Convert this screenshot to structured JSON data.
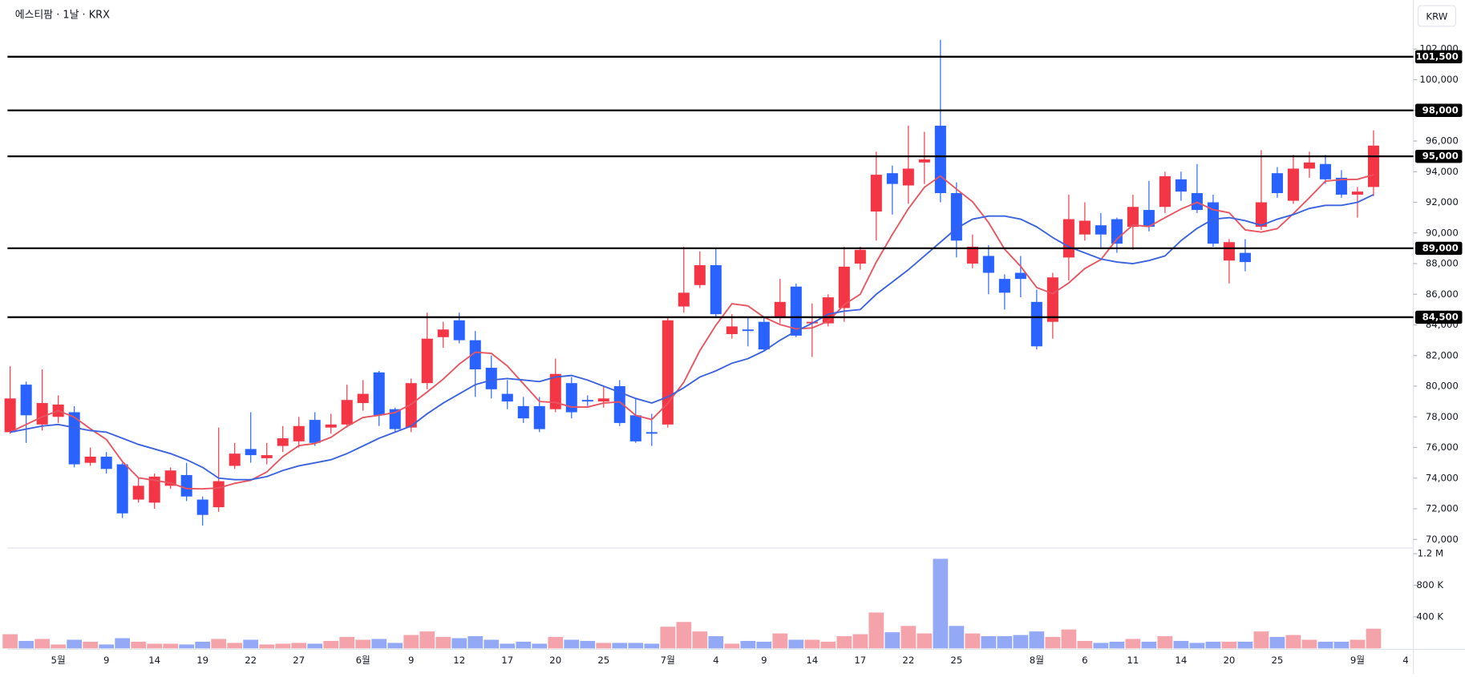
{
  "chart_data": {
    "type": "candlestick",
    "title": "에스티팜 · 1날 · KRX",
    "currency": "KRW",
    "categories": [
      null,
      null,
      null,
      "5월",
      null,
      null,
      "9",
      null,
      null,
      "14",
      null,
      null,
      "19",
      null,
      null,
      "22",
      null,
      null,
      "27",
      null,
      null,
      null,
      "6월",
      null,
      null,
      "9",
      null,
      null,
      "12",
      null,
      null,
      "17",
      null,
      null,
      "20",
      null,
      null,
      "25",
      null,
      null,
      null,
      "7월",
      null,
      null,
      "4",
      null,
      null,
      "9",
      null,
      null,
      "14",
      null,
      null,
      "17",
      null,
      null,
      "22",
      null,
      null,
      "25",
      null,
      null,
      null,
      null,
      "8월",
      null,
      null,
      "6",
      null,
      null,
      "11",
      null,
      null,
      "14",
      null,
      null,
      "20",
      null,
      null,
      "25",
      null,
      null,
      null,
      null,
      "9월",
      null,
      null,
      "4"
    ],
    "open": [
      77000,
      80100,
      77500,
      78000,
      78300,
      75000,
      75400,
      74900,
      72600,
      72400,
      73500,
      74200,
      72600,
      72100,
      74800,
      75900,
      75300,
      76100,
      76400,
      77800,
      77300,
      77500,
      78900,
      80900,
      78500,
      77300,
      80200,
      83200,
      84300,
      83000,
      81200,
      79500,
      78700,
      78700,
      78500,
      80200,
      79100,
      79000,
      80000,
      78100,
      77000,
      77500,
      85200,
      86600,
      87900,
      83400,
      83700,
      84200,
      84500,
      86500,
      84100,
      84100,
      85100,
      88000,
      91400,
      93900,
      93100,
      94600,
      97000,
      92600,
      88000,
      88500,
      87000,
      87400,
      85500,
      84200,
      88400,
      89900,
      90500,
      90900,
      90400,
      91500,
      91700,
      93500,
      92600,
      92000,
      88200,
      88700,
      90400,
      93900,
      92100,
      94200,
      94500,
      93600,
      92500,
      93000,
      null,
      null
    ],
    "high": [
      81300,
      80300,
      81100,
      79400,
      78700,
      76000,
      75700,
      75000,
      74000,
      74300,
      74700,
      75000,
      72800,
      77300,
      76300,
      78300,
      76300,
      77400,
      78000,
      78300,
      78200,
      80100,
      80400,
      81000,
      78600,
      80500,
      84800,
      84200,
      84800,
      83600,
      82000,
      80400,
      79300,
      79300,
      81800,
      80600,
      79400,
      80000,
      80400,
      79200,
      78200,
      84500,
      89100,
      88800,
      89000,
      84700,
      84500,
      84500,
      87000,
      86700,
      85400,
      86000,
      89100,
      89100,
      95300,
      94400,
      97000,
      96600,
      102600,
      93300,
      89900,
      89200,
      87300,
      88500,
      86300,
      87400,
      92500,
      92000,
      91300,
      91000,
      92500,
      93400,
      94000,
      94000,
      94500,
      92500,
      89600,
      89600,
      95400,
      94300,
      95100,
      95300,
      95100,
      94100,
      93000,
      96700,
      null,
      null
    ],
    "low": [
      76900,
      76300,
      77100,
      77600,
      74700,
      74800,
      74300,
      71400,
      72400,
      72000,
      73300,
      72500,
      70900,
      71800,
      74600,
      75000,
      74900,
      75700,
      76000,
      76100,
      76900,
      77300,
      78400,
      77400,
      77000,
      77000,
      79800,
      82500,
      82800,
      79300,
      79200,
      78500,
      77600,
      77000,
      78300,
      77900,
      78700,
      78600,
      77400,
      76300,
      76100,
      77300,
      84800,
      86400,
      84500,
      83100,
      82600,
      82300,
      84100,
      83200,
      81900,
      83900,
      84200,
      87600,
      89500,
      91200,
      91900,
      93200,
      92000,
      88400,
      87700,
      86000,
      85000,
      85800,
      82400,
      83100,
      86900,
      89500,
      89000,
      88700,
      88900,
      90100,
      91300,
      92100,
      91300,
      89100,
      86700,
      87500,
      90200,
      92300,
      91900,
      93600,
      93200,
      92300,
      91000,
      92400,
      null,
      null
    ],
    "close": [
      79200,
      78100,
      78900,
      78800,
      74900,
      75400,
      74600,
      71700,
      73500,
      74100,
      74500,
      72800,
      71600,
      73800,
      75600,
      75500,
      75500,
      76600,
      77400,
      76300,
      77500,
      79100,
      79500,
      78100,
      77200,
      80200,
      83100,
      83700,
      83000,
      81100,
      79800,
      79000,
      77900,
      77200,
      80800,
      78300,
      79000,
      79200,
      77600,
      76400,
      76900,
      84300,
      86100,
      87900,
      84700,
      83900,
      83600,
      82400,
      85500,
      83300,
      84200,
      85800,
      87800,
      88900,
      93800,
      93200,
      94200,
      94800,
      92600,
      89500,
      89100,
      87400,
      86100,
      87000,
      82600,
      87100,
      90900,
      90800,
      89900,
      89300,
      91700,
      90400,
      93700,
      92700,
      91500,
      89300,
      89400,
      88100,
      92000,
      92600,
      94200,
      94600,
      93500,
      92500,
      92700,
      95700,
      null,
      null
    ],
    "volume": [
      180000,
      95000,
      120000,
      50000,
      110000,
      85000,
      50000,
      130000,
      85000,
      60000,
      60000,
      50000,
      85000,
      120000,
      70000,
      110000,
      50000,
      60000,
      70000,
      60000,
      95000,
      145000,
      110000,
      120000,
      70000,
      170000,
      215000,
      145000,
      130000,
      155000,
      110000,
      60000,
      85000,
      60000,
      145000,
      110000,
      95000,
      70000,
      70000,
      70000,
      60000,
      275000,
      335000,
      215000,
      155000,
      60000,
      95000,
      85000,
      190000,
      110000,
      110000,
      85000,
      155000,
      180000,
      455000,
      205000,
      285000,
      190000,
      1135000,
      285000,
      190000,
      155000,
      155000,
      170000,
      215000,
      145000,
      240000,
      95000,
      70000,
      85000,
      120000,
      85000,
      155000,
      95000,
      70000,
      85000,
      85000,
      85000,
      215000,
      145000,
      170000,
      110000,
      85000,
      85000,
      110000,
      250000,
      null,
      null
    ],
    "up_color": "#f23645",
    "down_color": "#2962ff",
    "volume_up_color": "#f5a3aa",
    "volume_down_color": "#93a9f6",
    "series": [
      {
        "color": "#e8545f",
        "values": [
          77000,
          77500,
          78000,
          78400,
          77980,
          77220,
          76520,
          75080,
          74020,
          73860,
          73680,
          73320,
          73300,
          73360,
          73660,
          73860,
          74400,
          75400,
          76120,
          76260,
          76660,
          77380,
          77960,
          78100,
          78280,
          78820,
          79620,
          80460,
          81440,
          82220,
          82140,
          81320,
          80160,
          79000,
          78940,
          78640,
          78640,
          78900,
          78980,
          78100,
          77820,
          78880,
          80260,
          82320,
          83980,
          85380,
          85240,
          84500,
          84020,
          83740,
          83800,
          84240,
          85320,
          86000,
          88100,
          89900,
          91580,
          92980,
          93720,
          92860,
          92040,
          90680,
          88940,
          87820,
          86440,
          86040,
          86740,
          87680,
          88260,
          89600,
          90520,
          90420,
          91000,
          91560,
          92000,
          91520,
          91320,
          90200,
          90060,
          90280,
          91260,
          92300,
          93380,
          93480,
          93500,
          93800,
          null,
          null
        ]
      },
      {
        "color": "#3b63e0",
        "values": [
          77000,
          77200,
          77400,
          77500,
          77300,
          77100,
          77000,
          76600,
          76200,
          75900,
          75600,
          75200,
          74700,
          74000,
          73900,
          73900,
          74100,
          74500,
          74800,
          75000,
          75200,
          75600,
          76100,
          76600,
          77000,
          77400,
          78200,
          78900,
          79500,
          80100,
          80400,
          80500,
          80400,
          80300,
          80600,
          80700,
          80400,
          80000,
          79600,
          79200,
          78900,
          79300,
          79900,
          80600,
          81000,
          81500,
          81800,
          82300,
          83000,
          83600,
          84100,
          84700,
          84900,
          85000,
          86000,
          86800,
          87600,
          88500,
          89400,
          90300,
          90900,
          91100,
          91100,
          90900,
          90400,
          89700,
          89100,
          88700,
          88300,
          88100,
          88000,
          88200,
          88500,
          89500,
          90300,
          90900,
          91000,
          90800,
          90500,
          90900,
          91200,
          91600,
          91800,
          91800,
          92000,
          92500,
          null,
          null
        ]
      }
    ],
    "ylim": [
      69500,
      105200
    ],
    "yticks": [
      {
        "value": 70000,
        "label": "70,000"
      },
      {
        "value": 72000,
        "label": "72,000"
      },
      {
        "value": 74000,
        "label": "74,000"
      },
      {
        "value": 76000,
        "label": "76,000"
      },
      {
        "value": 78000,
        "label": "78,000"
      },
      {
        "value": 80000,
        "label": "80,000"
      },
      {
        "value": 82000,
        "label": "82,000"
      },
      {
        "value": 84000,
        "label": "84,000"
      },
      {
        "value": 86000,
        "label": "86,000"
      },
      {
        "value": 88000,
        "label": "88,000"
      },
      {
        "value": 90000,
        "label": "90,000"
      },
      {
        "value": 92000,
        "label": "92,000"
      },
      {
        "value": 94000,
        "label": "94,000"
      },
      {
        "value": 96000,
        "label": "96,000"
      },
      {
        "value": 98000,
        "label": "98,000"
      },
      {
        "value": 100000,
        "label": "100,000"
      },
      {
        "value": 102000,
        "label": "102,000"
      }
    ],
    "levels": [
      {
        "value": 101500,
        "label": "101,500"
      },
      {
        "value": 98000,
        "label": "98,000"
      },
      {
        "value": 95000,
        "label": "95,000"
      },
      {
        "value": 89000,
        "label": "89,000"
      },
      {
        "value": 84500,
        "label": "84,500"
      }
    ],
    "volume_ylim": [
      0,
      1260000
    ],
    "volume_yticks": [
      {
        "value": 400000,
        "label": "400 K"
      },
      {
        "value": 800000,
        "label": "800 K"
      },
      {
        "value": 1200000,
        "label": "1.2 M"
      }
    ]
  }
}
